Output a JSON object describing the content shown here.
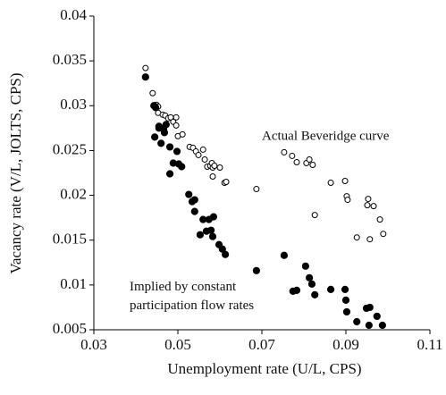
{
  "chart_data": {
    "type": "scatter",
    "x_label": "Unemployment rate (U/L, CPS)",
    "y_label": "Vacancy rate (V/L, JOLTS, CPS)",
    "xlim": [
      0.03,
      0.11
    ],
    "xticks": [
      0.03,
      0.05,
      0.07,
      0.09,
      0.11
    ],
    "ylim": [
      0.005,
      0.04
    ],
    "yticks": [
      0.005,
      0.01,
      0.015,
      0.02,
      0.025,
      0.03,
      0.035,
      0.04
    ],
    "grid": false,
    "series": [
      {
        "name": "Actual Beveridge curve",
        "color": "#000000",
        "marker": "open",
        "x": [
          0.0423,
          0.044,
          0.0449,
          0.0453,
          0.0453,
          0.0464,
          0.047,
          0.0477,
          0.0483,
          0.0489,
          0.0496,
          0.0496,
          0.05,
          0.0511,
          0.0528,
          0.0536,
          0.0543,
          0.0549,
          0.056,
          0.0564,
          0.057,
          0.0577,
          0.0581,
          0.0583,
          0.0587,
          0.0583,
          0.06,
          0.0611,
          0.0615,
          0.0687,
          0.0753,
          0.0772,
          0.0783,
          0.0806,
          0.0813,
          0.0821,
          0.0826,
          0.0864,
          0.0898,
          0.0902,
          0.0904,
          0.0926,
          0.0951,
          0.0953,
          0.0966,
          0.0957,
          0.0981,
          0.0989
        ],
        "values": [
          0.0342,
          0.0314,
          0.0301,
          0.0299,
          0.0292,
          0.029,
          0.0289,
          0.0286,
          0.0287,
          0.0282,
          0.0287,
          0.0278,
          0.0266,
          0.0268,
          0.0254,
          0.0253,
          0.0249,
          0.0245,
          0.0251,
          0.024,
          0.0232,
          0.0233,
          0.0236,
          0.0231,
          0.0233,
          0.0221,
          0.0231,
          0.0214,
          0.0215,
          0.0207,
          0.0248,
          0.0244,
          0.0237,
          0.0236,
          0.024,
          0.0234,
          0.0178,
          0.0214,
          0.0216,
          0.0199,
          0.0195,
          0.0153,
          0.0189,
          0.0196,
          0.0188,
          0.0151,
          0.0173,
          0.0157
        ]
      },
      {
        "name": "Implied by constant participation flow rates",
        "color": "#000000",
        "marker": "filled",
        "x": [
          0.0423,
          0.0443,
          0.0447,
          0.0445,
          0.0455,
          0.0455,
          0.046,
          0.0466,
          0.0468,
          0.0472,
          0.0481,
          0.0481,
          0.0489,
          0.0498,
          0.0502,
          0.0509,
          0.0526,
          0.0534,
          0.054,
          0.054,
          0.0553,
          0.056,
          0.0568,
          0.0574,
          0.0579,
          0.0583,
          0.0585,
          0.0598,
          0.0606,
          0.0613,
          0.0687,
          0.0753,
          0.0774,
          0.0783,
          0.0804,
          0.0813,
          0.0819,
          0.0826,
          0.0864,
          0.0898,
          0.09,
          0.0902,
          0.0926,
          0.0949,
          0.0957,
          0.0955,
          0.0974,
          0.0987
        ],
        "values": [
          0.0332,
          0.03,
          0.0298,
          0.0265,
          0.0277,
          0.0275,
          0.0258,
          0.0274,
          0.027,
          0.0279,
          0.0254,
          0.0224,
          0.0236,
          0.0249,
          0.0235,
          0.0232,
          0.0201,
          0.0193,
          0.0195,
          0.0182,
          0.0156,
          0.0173,
          0.016,
          0.0173,
          0.0161,
          0.0154,
          0.0176,
          0.0145,
          0.014,
          0.0134,
          0.0116,
          0.0133,
          0.0093,
          0.0094,
          0.0121,
          0.0108,
          0.0101,
          0.0089,
          0.0095,
          0.0095,
          0.0083,
          0.007,
          0.0059,
          0.0074,
          0.0075,
          0.0055,
          0.0065,
          0.0055
        ]
      }
    ]
  }
}
